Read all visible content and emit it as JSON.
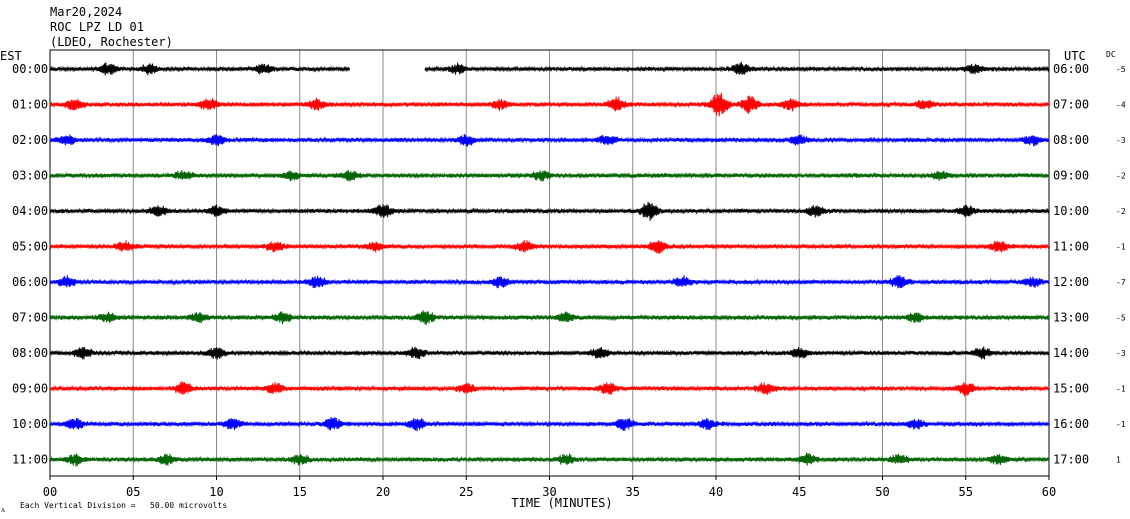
{
  "header": {
    "date": "Mar20,2024",
    "station": "ROC LPZ LD 01",
    "network": "(LDEO, Rochester)"
  },
  "left_axis_label": "EST",
  "right_axis_label": "UTC",
  "dc_label": "DC",
  "footer": {
    "scale_note": "Each Vertical Division =   50.00 microvolts",
    "corner_mark": "ᴧ"
  },
  "chart_data": {
    "type": "line",
    "xlabel": "TIME (MINUTES)",
    "xlim": [
      0,
      60
    ],
    "x_ticks": [
      "00",
      "05",
      "10",
      "15",
      "20",
      "25",
      "30",
      "35",
      "40",
      "45",
      "50",
      "55",
      "60"
    ],
    "grid": true,
    "trace_colors": [
      "#000000",
      "#ff0000",
      "#0000ff",
      "#006400"
    ],
    "rows": [
      {
        "est": "00:00",
        "utc": "06:00",
        "dc": "-5",
        "gaps": [
          [
            18.0,
            22.5
          ]
        ],
        "bursts": [
          [
            3.5,
            0.8
          ],
          [
            6.0,
            0.7
          ],
          [
            12.8,
            0.7
          ],
          [
            24.5,
            0.7
          ],
          [
            41.5,
            0.9
          ],
          [
            55.5,
            0.7
          ]
        ]
      },
      {
        "est": "01:00",
        "utc": "07:00",
        "dc": "-4",
        "gaps": [],
        "bursts": [
          [
            1.5,
            0.9
          ],
          [
            9.5,
            0.9
          ],
          [
            16.0,
            0.8
          ],
          [
            27.0,
            0.7
          ],
          [
            34.0,
            1.1
          ],
          [
            40.2,
            1.8
          ],
          [
            42.0,
            1.3
          ],
          [
            44.5,
            0.9
          ],
          [
            52.5,
            0.7
          ]
        ]
      },
      {
        "est": "02:00",
        "utc": "08:00",
        "dc": "-3",
        "gaps": [],
        "bursts": [
          [
            1.0,
            0.7
          ],
          [
            10.0,
            0.8
          ],
          [
            25.0,
            0.8
          ],
          [
            33.5,
            0.8
          ],
          [
            45.0,
            0.7
          ],
          [
            59.0,
            0.7
          ]
        ]
      },
      {
        "est": "03:00",
        "utc": "09:00",
        "dc": "-2",
        "gaps": [],
        "bursts": [
          [
            8.0,
            0.6
          ],
          [
            14.5,
            0.6
          ],
          [
            18.0,
            0.7
          ],
          [
            29.5,
            0.7
          ],
          [
            53.5,
            0.6
          ]
        ]
      },
      {
        "est": "04:00",
        "utc": "10:00",
        "dc": "-2",
        "gaps": [],
        "bursts": [
          [
            6.5,
            0.8
          ],
          [
            10.0,
            0.7
          ],
          [
            20.0,
            1.0
          ],
          [
            36.0,
            1.4
          ],
          [
            46.0,
            0.8
          ],
          [
            55.0,
            0.8
          ]
        ]
      },
      {
        "est": "05:00",
        "utc": "11:00",
        "dc": "-1",
        "gaps": [],
        "bursts": [
          [
            4.5,
            0.7
          ],
          [
            13.5,
            0.8
          ],
          [
            19.5,
            0.7
          ],
          [
            28.5,
            0.8
          ],
          [
            36.5,
            1.0
          ],
          [
            57.0,
            0.8
          ]
        ]
      },
      {
        "est": "06:00",
        "utc": "12:00",
        "dc": "-7",
        "gaps": [],
        "bursts": [
          [
            1.0,
            0.8
          ],
          [
            16.0,
            0.8
          ],
          [
            27.0,
            0.8
          ],
          [
            38.0,
            0.8
          ],
          [
            51.0,
            0.9
          ],
          [
            59.0,
            0.7
          ]
        ]
      },
      {
        "est": "07:00",
        "utc": "13:00",
        "dc": "-5",
        "gaps": [],
        "bursts": [
          [
            3.5,
            0.7
          ],
          [
            9.0,
            0.7
          ],
          [
            14.0,
            0.8
          ],
          [
            22.5,
            1.0
          ],
          [
            31.0,
            0.7
          ],
          [
            52.0,
            0.7
          ]
        ]
      },
      {
        "est": "08:00",
        "utc": "14:00",
        "dc": "-3",
        "gaps": [],
        "bursts": [
          [
            2.0,
            0.8
          ],
          [
            10.0,
            0.8
          ],
          [
            22.0,
            0.9
          ],
          [
            33.0,
            0.8
          ],
          [
            45.0,
            0.7
          ],
          [
            56.0,
            0.8
          ]
        ]
      },
      {
        "est": "09:00",
        "utc": "15:00",
        "dc": "-1",
        "gaps": [],
        "bursts": [
          [
            8.0,
            0.9
          ],
          [
            13.5,
            0.8
          ],
          [
            25.0,
            0.8
          ],
          [
            33.5,
            0.9
          ],
          [
            43.0,
            0.8
          ],
          [
            55.0,
            1.0
          ]
        ]
      },
      {
        "est": "10:00",
        "utc": "16:00",
        "dc": "-1",
        "gaps": [],
        "bursts": [
          [
            1.5,
            0.8
          ],
          [
            11.0,
            0.8
          ],
          [
            17.0,
            0.9
          ],
          [
            22.0,
            0.9
          ],
          [
            34.5,
            1.0
          ],
          [
            39.5,
            0.8
          ],
          [
            52.0,
            0.8
          ]
        ]
      },
      {
        "est": "11:00",
        "utc": "17:00",
        "dc": "1",
        "gaps": [],
        "bursts": [
          [
            1.5,
            0.8
          ],
          [
            7.0,
            0.7
          ],
          [
            15.0,
            0.8
          ],
          [
            31.0,
            0.8
          ],
          [
            45.5,
            0.8
          ],
          [
            51.0,
            0.7
          ],
          [
            57.0,
            0.7
          ]
        ]
      }
    ]
  }
}
